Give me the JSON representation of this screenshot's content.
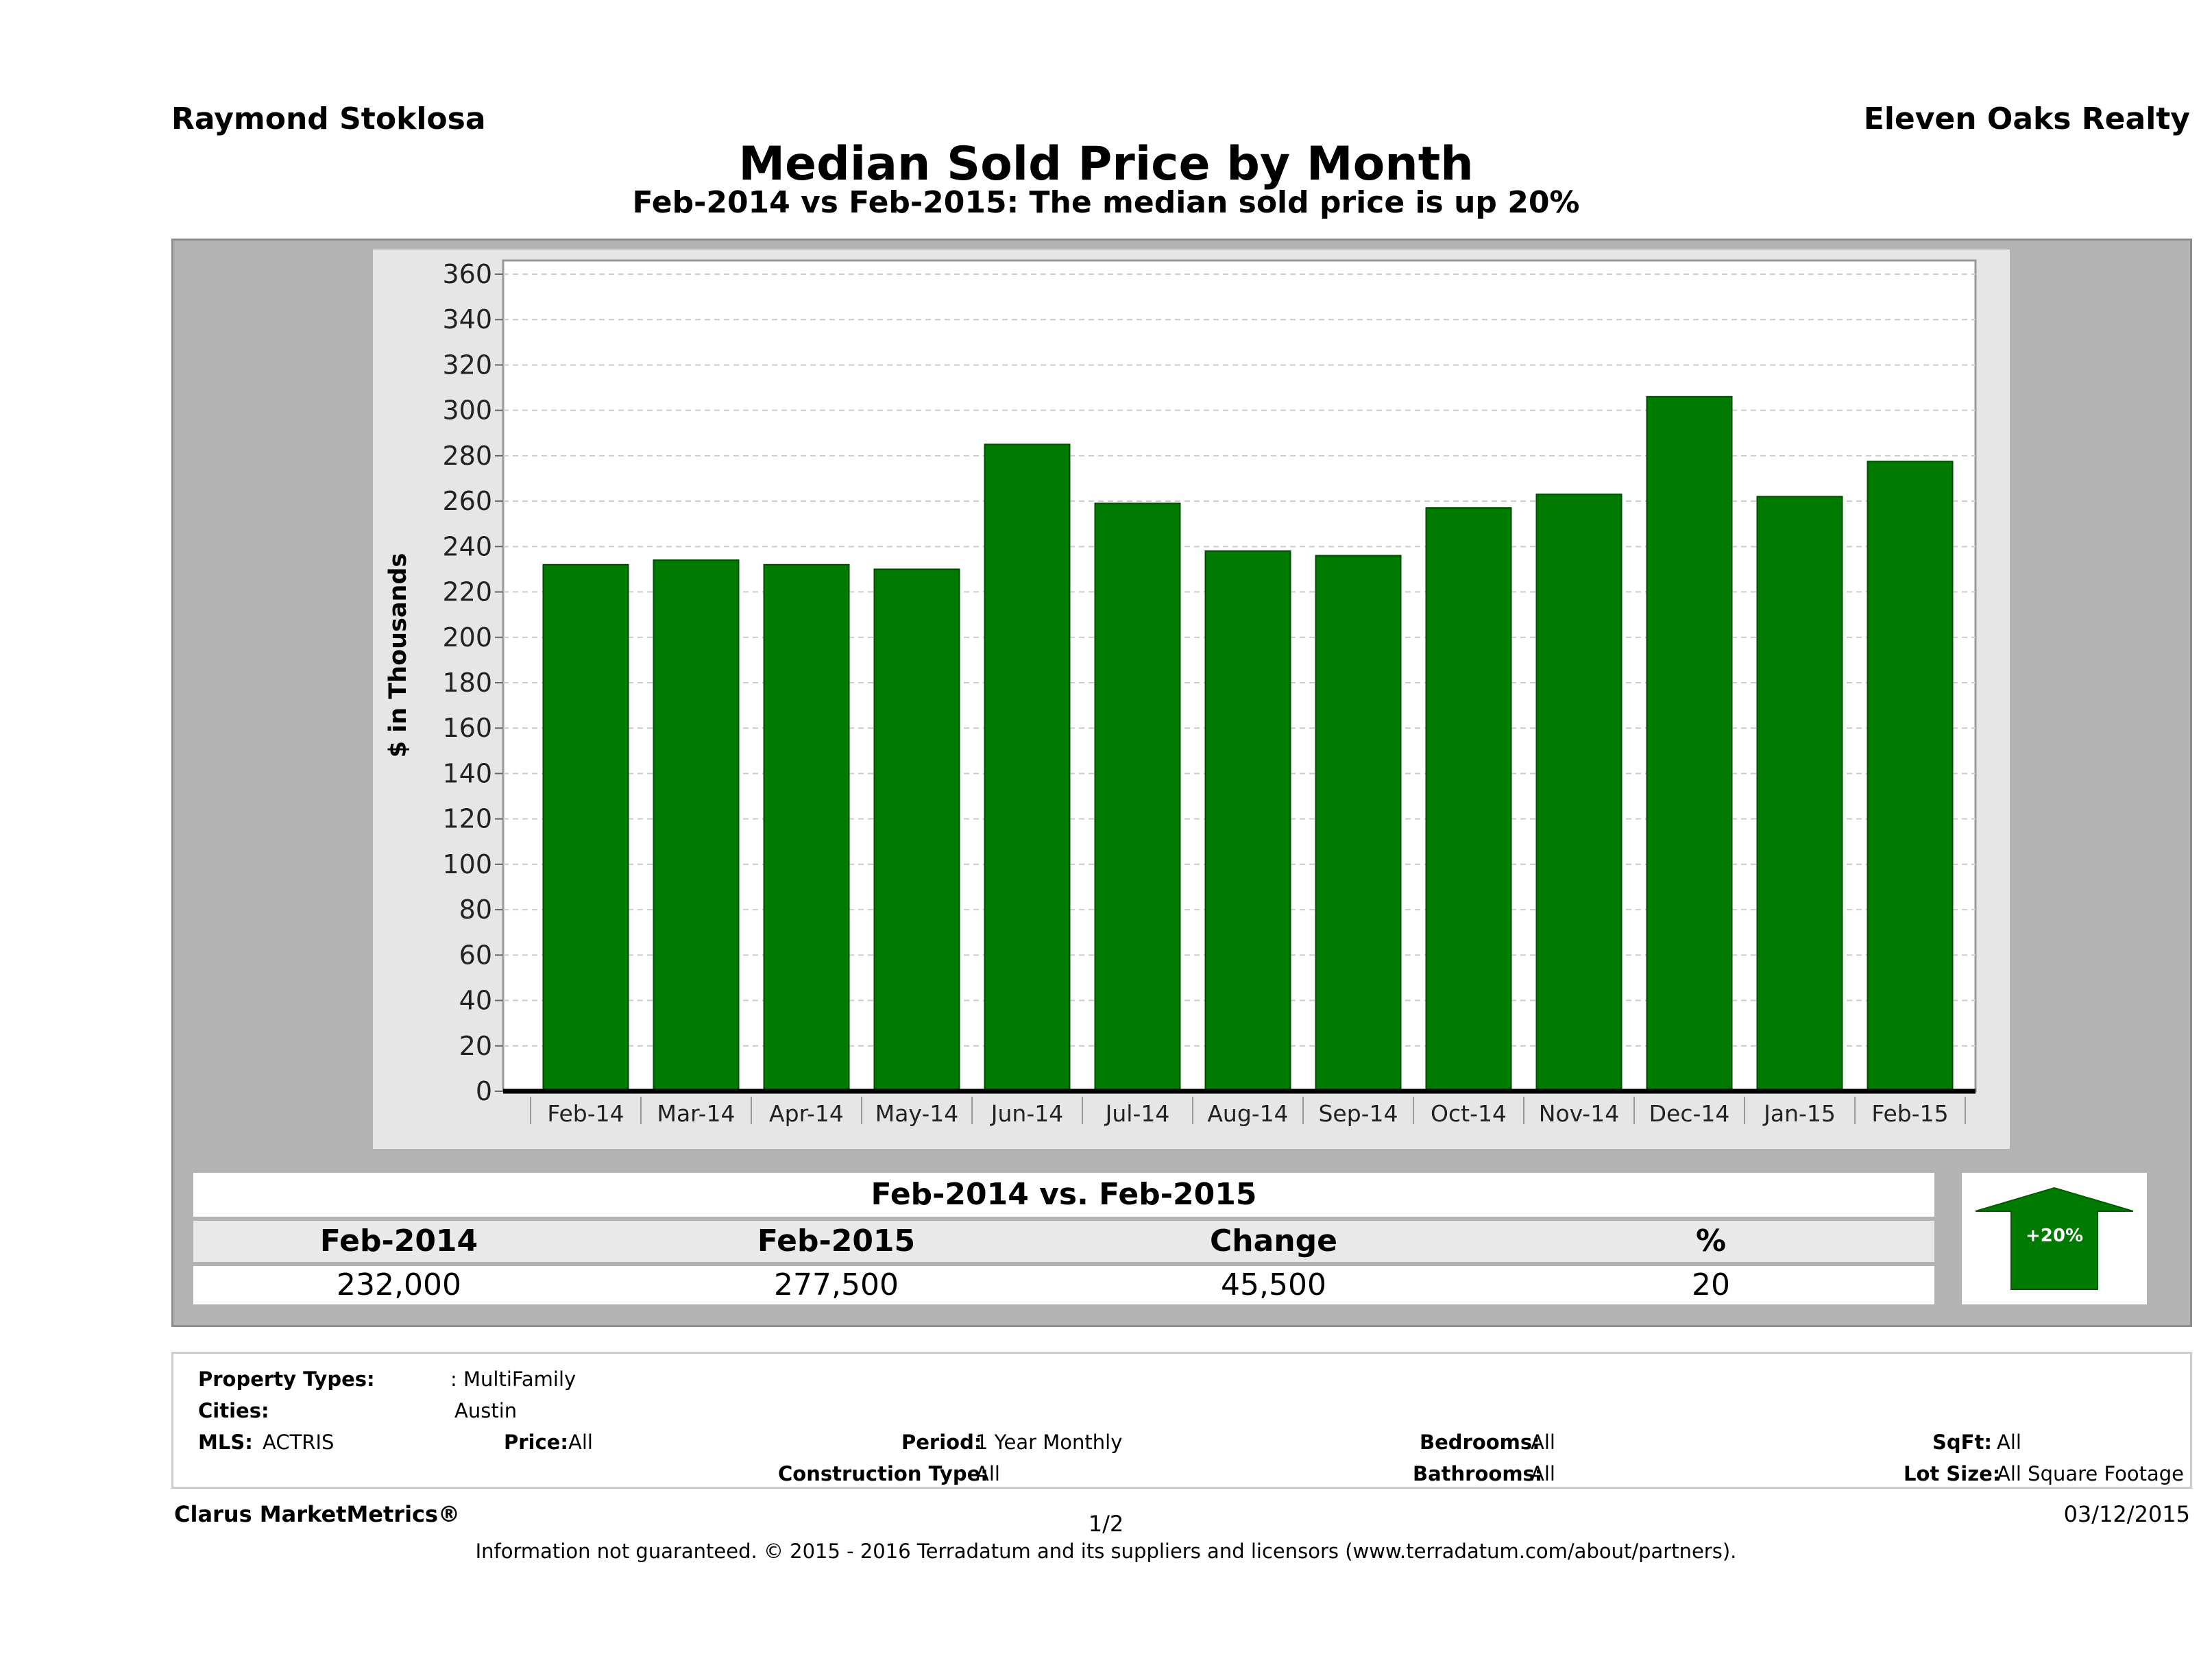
{
  "header": {
    "agent_name": "Raymond Stoklosa",
    "company_name": "Eleven Oaks Realty",
    "title": "Median Sold Price by Month",
    "subtitle": "Feb-2014 vs Feb-2015: The median sold price is up 20%"
  },
  "colors": {
    "bar": "#007a00",
    "outer_panel": "#b3b3b3",
    "plot_bg": "#ffffff",
    "arrow": "#007a00"
  },
  "chart_data": {
    "type": "bar",
    "categories": [
      "Feb-14",
      "Mar-14",
      "Apr-14",
      "May-14",
      "Jun-14",
      "Jul-14",
      "Aug-14",
      "Sep-14",
      "Oct-14",
      "Nov-14",
      "Dec-14",
      "Jan-15",
      "Feb-15"
    ],
    "values": [
      232,
      234,
      232,
      230,
      285,
      259,
      238,
      236,
      257,
      263,
      306,
      262,
      277.5
    ],
    "ylabel": "$ in Thousands",
    "xlabel": "",
    "ylim": [
      0,
      360
    ],
    "yticks": [
      0,
      20,
      40,
      60,
      80,
      100,
      120,
      140,
      160,
      180,
      200,
      220,
      240,
      260,
      280,
      300,
      320,
      340,
      360
    ],
    "grid": true,
    "legend": "none"
  },
  "summary": {
    "title": "Feb-2014 vs. Feb-2015",
    "columns": [
      "Feb-2014",
      "Feb-2015",
      "Change",
      "%"
    ],
    "values": [
      "232,000",
      "277,500",
      "45,500",
      "20"
    ],
    "badge": "+20%",
    "badge_icon": "up-arrow-icon"
  },
  "filters": {
    "property_types_label": "Property Types:",
    "property_types_value": ": MultiFamily",
    "cities_label": "Cities:",
    "cities_value": "Austin",
    "mls_label": "MLS:",
    "mls_value": "ACTRIS",
    "price_label": "Price:",
    "price_value": "All",
    "period_label": "Period:",
    "period_value": "1 Year Monthly",
    "construction_label": "Construction Type:",
    "construction_value": "All",
    "bedrooms_label": "Bedrooms:",
    "bedrooms_value": "All",
    "bathrooms_label": "Bathrooms:",
    "bathrooms_value": "All",
    "sqft_label": "SqFt:",
    "sqft_value": "All",
    "lotsize_label": "Lot Size:",
    "lotsize_value": "All Square Footage"
  },
  "footer": {
    "brand": "Clarus MarketMetrics®",
    "page": "1/2",
    "date": "03/12/2015",
    "disclaimer": "Information not guaranteed. © 2015 - 2016 Terradatum and its suppliers and licensors (www.terradatum.com/about/partners)."
  }
}
